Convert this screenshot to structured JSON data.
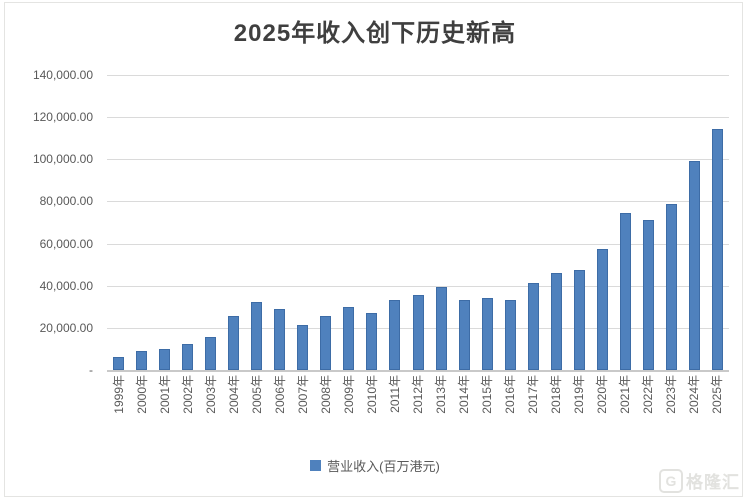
{
  "title": "2025年收入创下历史新高",
  "y_axis": {
    "tick_labels": [
      "140,000.00",
      "120,000.00",
      "100,000.00",
      "80,000.00",
      "60,000.00",
      "40,000.00",
      "20,000.00",
      "-"
    ]
  },
  "legend": {
    "label": "营业收入(百万港元)"
  },
  "watermark": {
    "logo_letter": "G",
    "brand": "格隆汇"
  },
  "colors": {
    "bar": "#4f81bd",
    "bar_border": "#3d6ca6",
    "gridline": "#dadada",
    "axis_line": "#c9c9c9",
    "tick_text": "#595959",
    "title_text": "#3f3f3f"
  },
  "chart_data": {
    "type": "bar",
    "title": "2025年收入创下历史新高",
    "xlabel": "",
    "ylabel": "营业收入(百万港元)",
    "categories": [
      "1999年",
      "2000年",
      "2001年",
      "2002年",
      "2003年",
      "2004年",
      "2005年",
      "2006年",
      "2007年",
      "2008年",
      "2009年",
      "2010年",
      "2011年",
      "2012年",
      "2013年",
      "2014年",
      "2015年",
      "2016年",
      "2017年",
      "2018年",
      "2019年",
      "2020年",
      "2021年",
      "2022年",
      "2023年",
      "2024年",
      "2025年"
    ],
    "series": [
      {
        "name": "营业收入(百万港元)",
        "values": [
          6300,
          8800,
          9900,
          12200,
          15600,
          25700,
          32500,
          29000,
          21300,
          25400,
          30000,
          27000,
          33100,
          35700,
          39500,
          33300,
          34100,
          33300,
          41300,
          46000,
          47500,
          57500,
          74700,
          71200,
          79000,
          99200,
          114600
        ]
      }
    ],
    "ylim": [
      0,
      140000
    ],
    "ytick_step": 20000,
    "grid": true,
    "legend_position": "bottom"
  }
}
